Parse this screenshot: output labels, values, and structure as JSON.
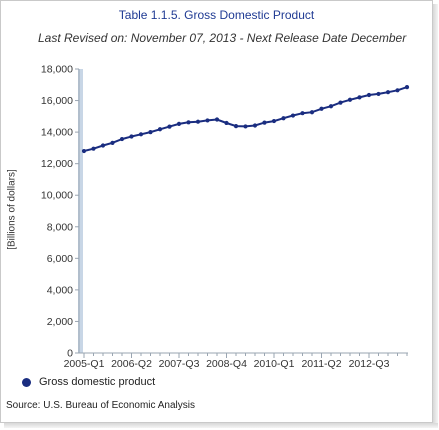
{
  "chart_data": {
    "type": "line",
    "title": "Table 1.1.5. Gross Domestic Product",
    "subtitle": "Last Revised on: November 07, 2013 - Next Release Date December",
    "ylabel": "[Billions of dollars]",
    "xlabel": "",
    "ylim": [
      0,
      18000
    ],
    "y_ticks": [
      0,
      2000,
      4000,
      6000,
      8000,
      10000,
      12000,
      14000,
      16000,
      18000
    ],
    "y_tick_labels": [
      "0",
      "2,000",
      "4,000",
      "6,000",
      "8,000",
      "10,000",
      "12,000",
      "14,000",
      "16,000",
      "18,000"
    ],
    "x_tick_labels": [
      "2005-Q1",
      "2006-Q2",
      "2007-Q3",
      "2008-Q4",
      "2010-Q1",
      "2011-Q2",
      "2012-Q3"
    ],
    "x": [
      "2005-Q1",
      "2005-Q2",
      "2005-Q3",
      "2005-Q4",
      "2006-Q1",
      "2006-Q2",
      "2006-Q3",
      "2006-Q4",
      "2007-Q1",
      "2007-Q2",
      "2007-Q3",
      "2007-Q4",
      "2008-Q1",
      "2008-Q2",
      "2008-Q3",
      "2008-Q4",
      "2009-Q1",
      "2009-Q2",
      "2009-Q3",
      "2009-Q4",
      "2010-Q1",
      "2010-Q2",
      "2010-Q3",
      "2010-Q4",
      "2011-Q1",
      "2011-Q2",
      "2011-Q3",
      "2011-Q4",
      "2012-Q1",
      "2012-Q2",
      "2012-Q3",
      "2012-Q4",
      "2013-Q1",
      "2013-Q2",
      "2013-Q3"
    ],
    "series": [
      {
        "name": "Gross domestic product",
        "color": "#1a2d80",
        "values": [
          12800,
          12950,
          13150,
          13320,
          13560,
          13720,
          13860,
          14000,
          14180,
          14350,
          14520,
          14620,
          14660,
          14740,
          14800,
          14580,
          14380,
          14360,
          14420,
          14600,
          14700,
          14880,
          15050,
          15200,
          15260,
          15480,
          15640,
          15870,
          16050,
          16200,
          16350,
          16420,
          16530,
          16650,
          16850
        ]
      }
    ],
    "grid": false,
    "legend_position": "bottom-left"
  },
  "legend": {
    "label": "Gross domestic product"
  },
  "source": "Source: U.S. Bureau of Economic Analysis"
}
